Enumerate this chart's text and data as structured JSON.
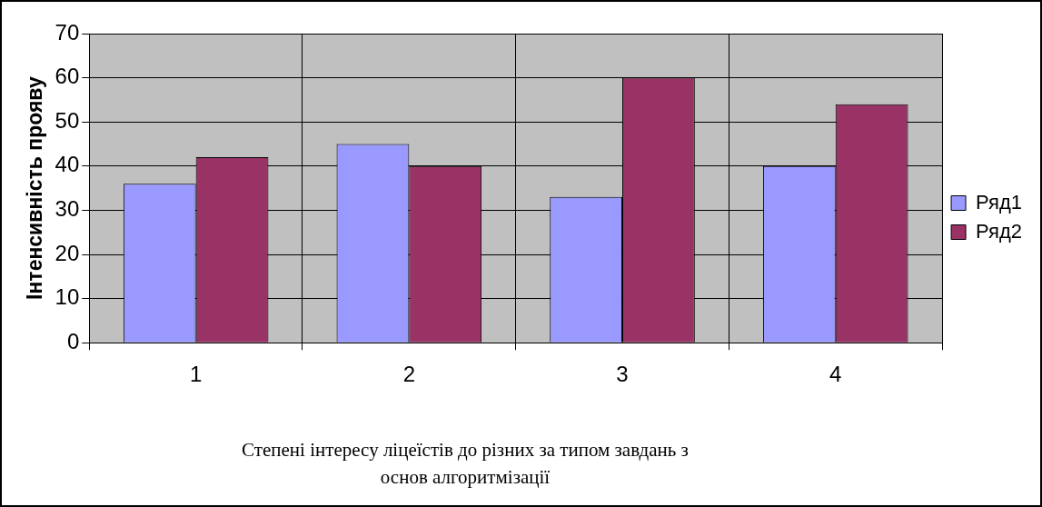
{
  "chart_data": {
    "type": "bar",
    "xlabel": "Степені інтересу ліцеїстів до різних за типом завдань з основ алгоритмізації",
    "ylabel": "Інтенсивність прояву",
    "categories": [
      "1",
      "2",
      "3",
      "4"
    ],
    "series": [
      {
        "name": "Ряд1",
        "color": "#9999ff",
        "values": [
          36,
          45,
          33,
          40
        ]
      },
      {
        "name": "Ряд2",
        "color": "#993366",
        "values": [
          42,
          40,
          60,
          54
        ]
      }
    ],
    "ylim": [
      0,
      70
    ],
    "yticks": [
      0,
      10,
      20,
      30,
      40,
      50,
      60,
      70
    ],
    "grid": true,
    "legend": "right"
  }
}
